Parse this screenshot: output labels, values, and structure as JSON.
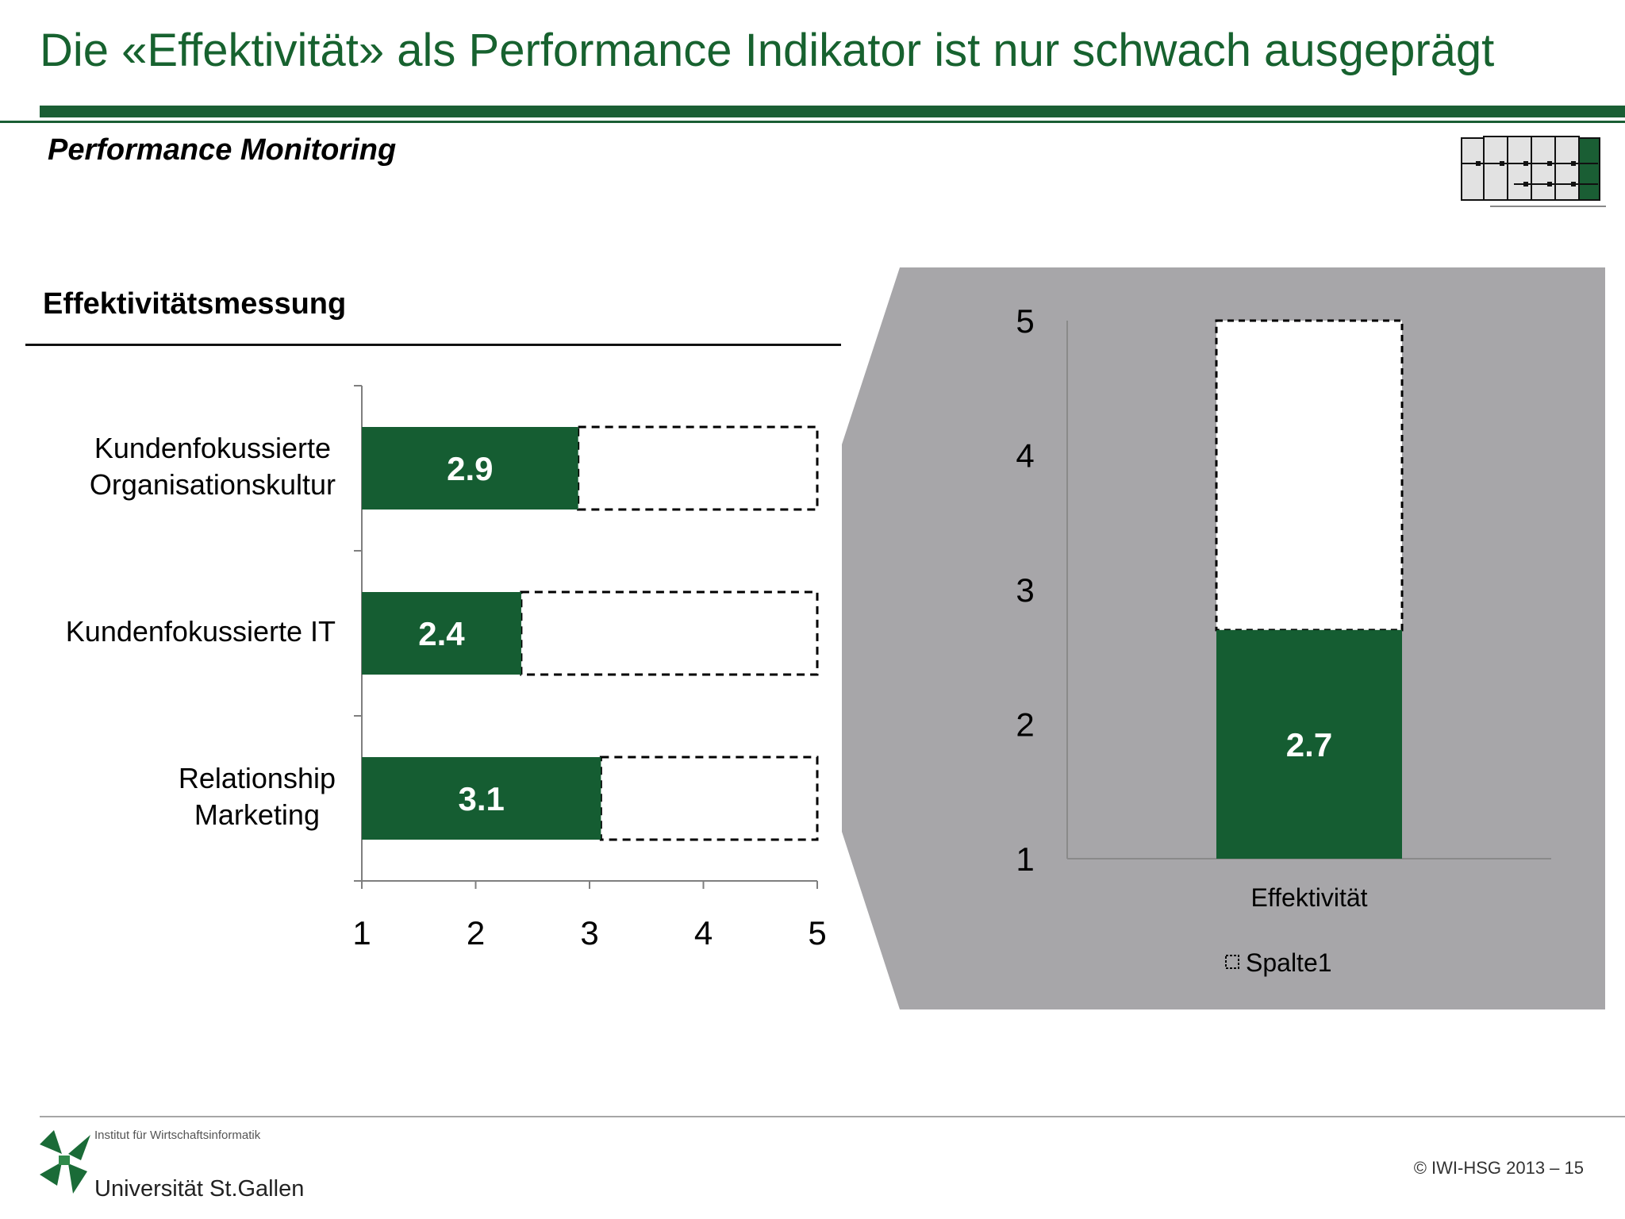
{
  "slide": {
    "title": "Die «Effektivität» als Performance Indikator ist nur schwach ausgeprägt",
    "subtitle": "Performance Monitoring",
    "section_title": "Effektivitätsmessung",
    "footer": {
      "institute": "Institut für Wirtschaftsinformatik",
      "university": "Universität St.Gallen",
      "copyright": "© IWI-HSG 2013 – 15"
    },
    "colors": {
      "accent": "#17622f",
      "bar": "#155d32",
      "panel": "#a7a6a9"
    }
  },
  "chart_data": [
    {
      "type": "bar",
      "orientation": "horizontal",
      "categories": [
        [
          "Kundenfokussierte",
          "Organisationskultur"
        ],
        [
          "Kundenfokussierte IT"
        ],
        [
          "Relationship",
          "Marketing"
        ]
      ],
      "values": [
        2.9,
        2.4,
        3.1
      ],
      "data_labels": [
        "2.9",
        "2.4",
        "3.1"
      ],
      "max_marker": 5,
      "xlim": [
        1,
        5
      ],
      "xticks": [
        "1",
        "2",
        "3",
        "4",
        "5"
      ],
      "grid": false
    },
    {
      "type": "bar",
      "orientation": "vertical",
      "categories": [
        "Effektivität"
      ],
      "values": [
        2.7
      ],
      "data_labels": [
        "2.7"
      ],
      "max_marker": 5,
      "ylim": [
        1,
        5
      ],
      "yticks": [
        "1",
        "2",
        "3",
        "4",
        "5"
      ],
      "legend": {
        "entries": [
          "Spalte1"
        ],
        "placement": "bottom"
      },
      "grid": false
    }
  ]
}
